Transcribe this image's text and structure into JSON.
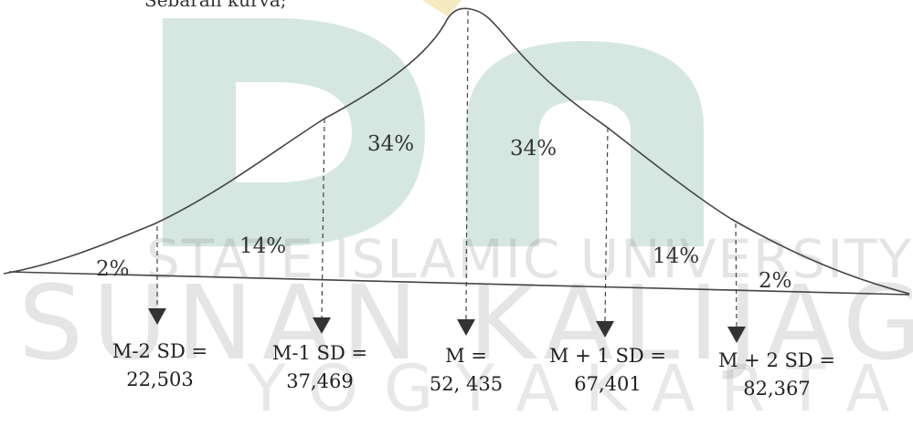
{
  "caption": "Sebaran kurva;",
  "watermark": {
    "line1": "STATE ISLAMIC UNIVERSITY",
    "line2": "SUNAN KALIJAGA",
    "line3": "YOGYAKARTA",
    "logo_color": "#cfe3dc",
    "logo_accent": "#f3e3b0"
  },
  "regions": {
    "left_2": "2%",
    "left_14": "14%",
    "left_34": "34%",
    "right_34": "34%",
    "right_14": "14%",
    "right_2": "2%"
  },
  "markers": [
    {
      "formula": "M-2 SD =",
      "value": "22,503"
    },
    {
      "formula": "M-1 SD =",
      "value": "37,469"
    },
    {
      "formula": "M =",
      "value": "52, 435"
    },
    {
      "formula": "M + 1 SD =",
      "value": "67,401"
    },
    {
      "formula": "M + 2 SD =",
      "value": "82,367"
    }
  ]
}
